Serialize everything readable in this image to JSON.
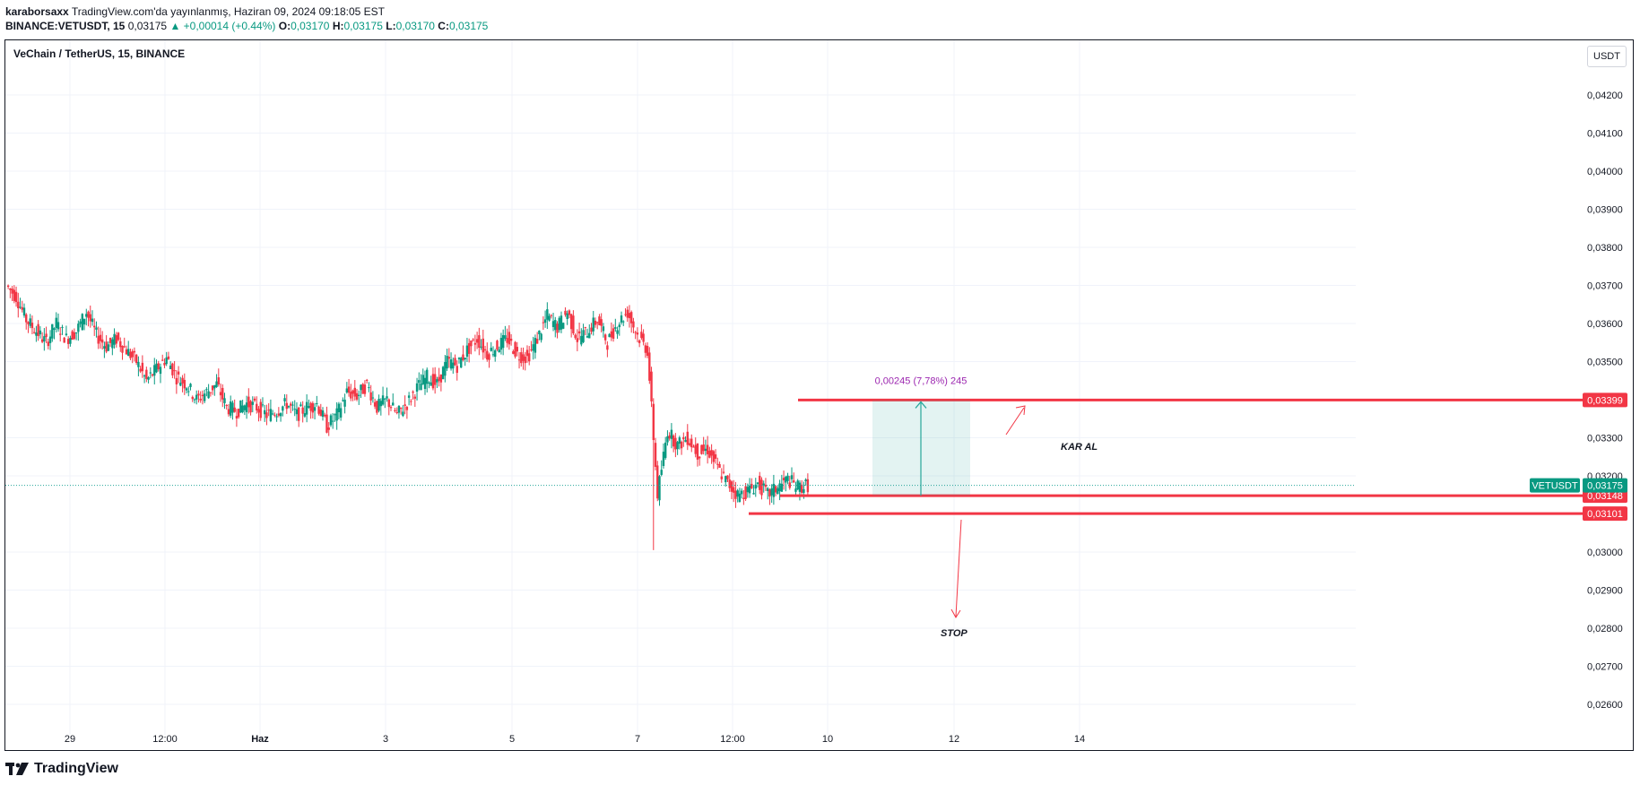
{
  "header": {
    "author": "karaborsaxx",
    "published_text": "TradingView.com'da yayınlanmış, Haziran 09, 2024 09:18:05 EST",
    "symbol_line": "BINANCE:VETUSDT, 15",
    "last": "0,03175",
    "change": "▲ +0,00014 (+0.44%)",
    "o_label": "O:",
    "o_value": "0,03170",
    "h_label": "H:",
    "h_value": "0,03175",
    "l_label": "L:",
    "l_value": "0,03170",
    "c_label": "C:",
    "c_value": "0,03175"
  },
  "chart_title": "VeChain / TetherUS, 15, BINANCE",
  "currency": "USDT",
  "footer": {
    "brand": "TradingView"
  },
  "colors": {
    "up": "#089981",
    "down": "#f23645",
    "line_red": "#f23645",
    "teal": "#26a69a",
    "label_purple": "#9c27b0"
  },
  "chart_data": {
    "type": "candlestick",
    "title": "VeChain / TetherUS, 15, BINANCE",
    "yticks": [
      "0,04200",
      "0,04100",
      "0,04000",
      "0,03900",
      "0,03800",
      "0,03700",
      "0,03600",
      "0,03500",
      "0,03300",
      "0,03200",
      "0,03000",
      "0,02900",
      "0,02800",
      "0,02700",
      "0,02600"
    ],
    "ytick_values": [
      0.042,
      0.041,
      0.04,
      0.039,
      0.038,
      0.037,
      0.036,
      0.035,
      0.033,
      0.032,
      0.03,
      0.029,
      0.028,
      0.027,
      0.026
    ],
    "xticks": [
      "29",
      "12:00",
      "Haz",
      "3",
      "5",
      "7",
      "12:00",
      "10",
      "12",
      "14"
    ],
    "ylim": [
      0.0254,
      0.0435
    ],
    "price_path": [
      [
        0.037,
        0.0367
      ],
      [
        0.0367,
        0.0361
      ],
      [
        0.0361,
        0.0358
      ],
      [
        0.0358,
        0.0355
      ],
      [
        0.0355,
        0.036
      ],
      [
        0.036,
        0.0356
      ],
      [
        0.0356,
        0.0358
      ],
      [
        0.0358,
        0.0363
      ],
      [
        0.0363,
        0.0357
      ],
      [
        0.0357,
        0.0354
      ],
      [
        0.0354,
        0.0356
      ],
      [
        0.0356,
        0.0353
      ],
      [
        0.0353,
        0.035
      ],
      [
        0.035,
        0.0345
      ],
      [
        0.0345,
        0.0348
      ],
      [
        0.0348,
        0.0351
      ],
      [
        0.0351,
        0.0346
      ],
      [
        0.0346,
        0.0344
      ],
      [
        0.0344,
        0.034
      ],
      [
        0.034,
        0.0342
      ],
      [
        0.0342,
        0.0344
      ],
      [
        0.0344,
        0.0338
      ],
      [
        0.0338,
        0.0337
      ],
      [
        0.0337,
        0.0339
      ],
      [
        0.0339,
        0.0338
      ],
      [
        0.0338,
        0.0336
      ],
      [
        0.0336,
        0.0337
      ],
      [
        0.0337,
        0.0339
      ],
      [
        0.0339,
        0.0336
      ],
      [
        0.0336,
        0.0338
      ],
      [
        0.0338,
        0.0339
      ],
      [
        0.0339,
        0.0333
      ],
      [
        0.0333,
        0.0336
      ],
      [
        0.0336,
        0.0342
      ],
      [
        0.0342,
        0.0341
      ],
      [
        0.0341,
        0.0344
      ],
      [
        0.0344,
        0.0338
      ],
      [
        0.0338,
        0.034
      ],
      [
        0.034,
        0.0336
      ],
      [
        0.0336,
        0.0339
      ],
      [
        0.0339,
        0.0343
      ],
      [
        0.0343,
        0.0346
      ],
      [
        0.0346,
        0.0344
      ],
      [
        0.0344,
        0.035
      ],
      [
        0.035,
        0.0349
      ],
      [
        0.0349,
        0.0353
      ],
      [
        0.0353,
        0.0356
      ],
      [
        0.0356,
        0.0352
      ],
      [
        0.0352,
        0.0354
      ],
      [
        0.0354,
        0.0356
      ],
      [
        0.0356,
        0.0352
      ],
      [
        0.0352,
        0.0351
      ],
      [
        0.0351,
        0.0356
      ],
      [
        0.0356,
        0.0362
      ],
      [
        0.0362,
        0.0359
      ],
      [
        0.0359,
        0.0363
      ],
      [
        0.0363,
        0.0356
      ],
      [
        0.0356,
        0.0358
      ],
      [
        0.0358,
        0.0361
      ],
      [
        0.0361,
        0.0355
      ],
      [
        0.0355,
        0.036
      ],
      [
        0.036,
        0.0363
      ],
      [
        0.0363,
        0.0357
      ],
      [
        0.0357,
        0.0353
      ],
      [
        0.0353,
        0.0315
      ],
      [
        0.0315,
        0.0332
      ],
      [
        0.0332,
        0.0328
      ],
      [
        0.0328,
        0.033
      ],
      [
        0.033,
        0.0326
      ],
      [
        0.0326,
        0.0327
      ],
      [
        0.0327,
        0.0322
      ],
      [
        0.0322,
        0.0318
      ],
      [
        0.0318,
        0.0315
      ],
      [
        0.0315,
        0.0316
      ],
      [
        0.0316,
        0.0318
      ],
      [
        0.0318,
        0.0315
      ],
      [
        0.0315,
        0.0317
      ],
      [
        0.0317,
        0.0319
      ],
      [
        0.0319,
        0.0317
      ],
      [
        0.0317,
        0.03175
      ]
    ],
    "levels": [
      {
        "label": "0,03399",
        "value": 0.03399
      },
      {
        "label": "0,03148",
        "value": 0.03148
      },
      {
        "label": "0,03101",
        "value": 0.03101
      }
    ],
    "last_price": {
      "label": "0,03175",
      "value": 0.03175,
      "symbol": "VETUSDT"
    },
    "measure_label": "0,00245 (7,78%) 245",
    "annotations": [
      {
        "name": "take-profit",
        "text": "KAR AL"
      },
      {
        "name": "stop",
        "text": "STOP"
      }
    ]
  }
}
